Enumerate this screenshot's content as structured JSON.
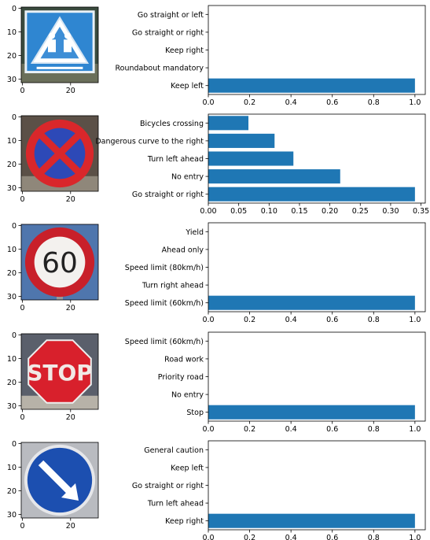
{
  "figure_title": "",
  "colors": {
    "bar": "#1f77b4",
    "axis": "#000000",
    "background": "#ffffff"
  },
  "chart_data": [
    {
      "type": "bar",
      "orientation": "horizontal",
      "image": {
        "icon": "children-crossing-sign",
        "xticks": [
          "0",
          "20"
        ],
        "yticks": [
          "0",
          "10",
          "20",
          "30"
        ]
      },
      "categories": [
        "Keep left",
        "Roundabout mandatory",
        "Keep right",
        "Go straight or right",
        "Go straight or left"
      ],
      "values": [
        1.0,
        0.0,
        0.0,
        0.0,
        0.0
      ],
      "xlim": [
        0,
        1.05
      ],
      "xticks": [
        0.0,
        0.2,
        0.4,
        0.6,
        0.8,
        1.0
      ],
      "xtick_labels": [
        "0.0",
        "0.2",
        "0.4",
        "0.6",
        "0.8",
        "1.0"
      ],
      "grid": false
    },
    {
      "type": "bar",
      "orientation": "horizontal",
      "image": {
        "icon": "no-stopping-sign",
        "xticks": [
          "0",
          "20"
        ],
        "yticks": [
          "0",
          "10",
          "20",
          "30"
        ]
      },
      "categories": [
        "Go straight or right",
        "No entry",
        "Turn left ahead",
        "Dangerous curve to the right",
        "Bicycles crossing"
      ],
      "values": [
        0.34,
        0.217,
        0.14,
        0.109,
        0.066
      ],
      "xlim": [
        0,
        0.357
      ],
      "xticks": [
        0.0,
        0.05,
        0.1,
        0.15,
        0.2,
        0.25,
        0.3,
        0.35
      ],
      "xtick_labels": [
        "0.00",
        "0.05",
        "0.10",
        "0.15",
        "0.20",
        "0.25",
        "0.30",
        "0.35"
      ],
      "grid": false
    },
    {
      "type": "bar",
      "orientation": "horizontal",
      "image": {
        "icon": "speed-limit-60-sign",
        "sign_text": "60",
        "xticks": [
          "0",
          "20"
        ],
        "yticks": [
          "0",
          "10",
          "20",
          "30"
        ]
      },
      "categories": [
        "Speed limit (60km/h)",
        "Turn right ahead",
        "Speed limit (80km/h)",
        "Ahead only",
        "Yield"
      ],
      "values": [
        1.0,
        0.0,
        0.0,
        0.0,
        0.0
      ],
      "xlim": [
        0,
        1.05
      ],
      "xticks": [
        0.0,
        0.2,
        0.4,
        0.6,
        0.8,
        1.0
      ],
      "xtick_labels": [
        "0.0",
        "0.2",
        "0.4",
        "0.6",
        "0.8",
        "1.0"
      ],
      "grid": false
    },
    {
      "type": "bar",
      "orientation": "horizontal",
      "image": {
        "icon": "stop-sign",
        "sign_text": "STOP",
        "xticks": [
          "0",
          "20"
        ],
        "yticks": [
          "0",
          "10",
          "20",
          "30"
        ]
      },
      "categories": [
        "Stop",
        "No entry",
        "Priority road",
        "Road work",
        "Speed limit (60km/h)"
      ],
      "values": [
        1.0,
        0.0,
        0.0,
        0.0,
        0.0
      ],
      "xlim": [
        0,
        1.05
      ],
      "xticks": [
        0.0,
        0.2,
        0.4,
        0.6,
        0.8,
        1.0
      ],
      "xtick_labels": [
        "0.0",
        "0.2",
        "0.4",
        "0.6",
        "0.8",
        "1.0"
      ],
      "grid": false
    },
    {
      "type": "bar",
      "orientation": "horizontal",
      "image": {
        "icon": "keep-right-sign",
        "xticks": [
          "0",
          "20"
        ],
        "yticks": [
          "0",
          "10",
          "20",
          "30"
        ]
      },
      "categories": [
        "Keep right",
        "Turn left ahead",
        "Go straight or right",
        "Keep left",
        "General caution"
      ],
      "values": [
        1.0,
        0.0,
        0.0,
        0.0,
        0.0
      ],
      "xlim": [
        0,
        1.05
      ],
      "xticks": [
        0.0,
        0.2,
        0.4,
        0.6,
        0.8,
        1.0
      ],
      "xtick_labels": [
        "0.0",
        "0.2",
        "0.4",
        "0.6",
        "0.8",
        "1.0"
      ],
      "grid": false
    }
  ]
}
